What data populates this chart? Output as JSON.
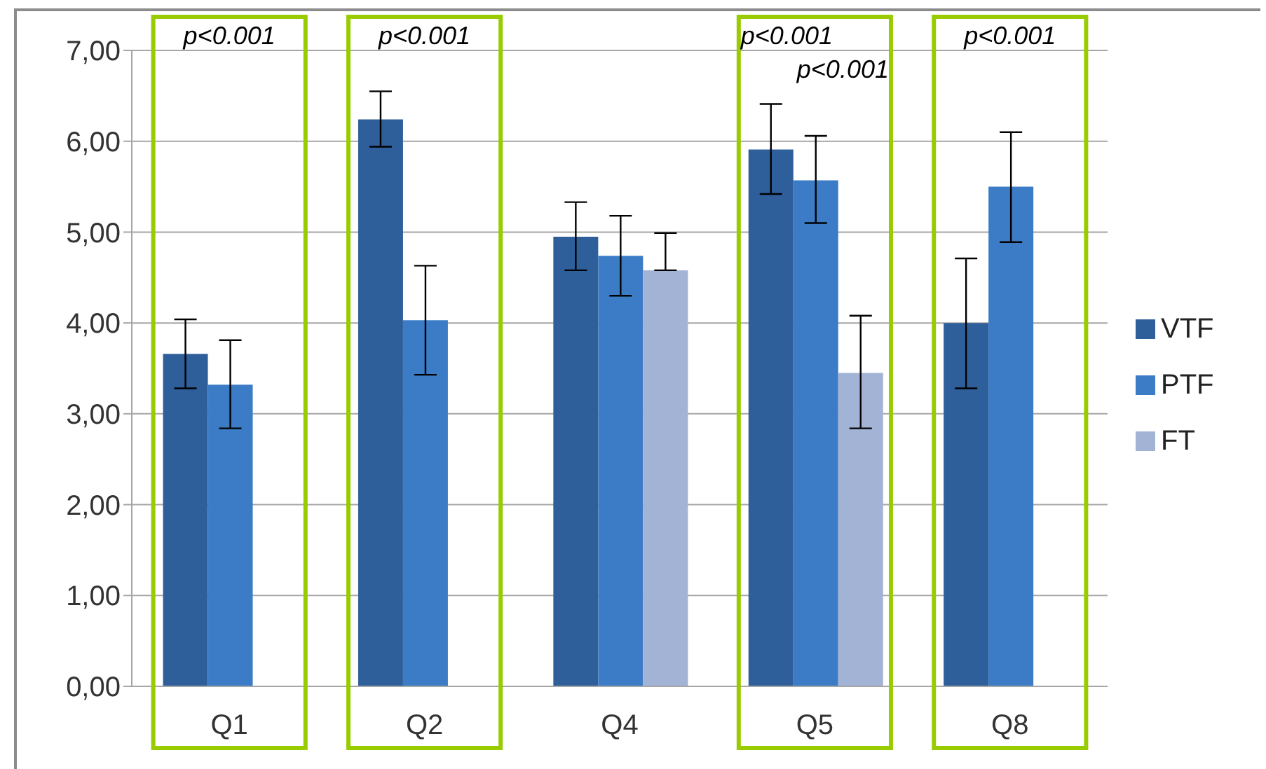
{
  "chart_data": {
    "type": "bar",
    "categories": [
      "Q1",
      "Q2",
      "Q4",
      "Q5",
      "Q8"
    ],
    "series": [
      {
        "name": "VTF",
        "color": "#2f5f9b",
        "values": [
          3.66,
          6.24,
          4.95,
          5.91,
          4.0
        ],
        "errors": [
          [
            3.28,
            4.04
          ],
          [
            5.94,
            6.55
          ],
          [
            4.58,
            5.33
          ],
          [
            5.42,
            6.41
          ],
          [
            3.28,
            4.71
          ]
        ]
      },
      {
        "name": "PTF",
        "color": "#3c7cc6",
        "values": [
          3.32,
          4.03,
          4.74,
          5.57,
          5.5
        ],
        "errors": [
          [
            2.84,
            3.81
          ],
          [
            3.43,
            4.63
          ],
          [
            4.3,
            5.18
          ],
          [
            5.1,
            6.06
          ],
          [
            4.89,
            6.1
          ]
        ]
      },
      {
        "name": "FT",
        "color": "#a2b3d6",
        "values": [
          null,
          null,
          4.58,
          3.45,
          null
        ],
        "errors": [
          null,
          null,
          [
            4.58,
            4.99
          ],
          [
            2.84,
            4.08
          ],
          null
        ]
      }
    ],
    "ylim": [
      0,
      7
    ],
    "yticks": [
      {
        "value": 0,
        "label": "0,00"
      },
      {
        "value": 1,
        "label": "1,00"
      },
      {
        "value": 2,
        "label": "2,00"
      },
      {
        "value": 3,
        "label": "3,00"
      },
      {
        "value": 4,
        "label": "4,00"
      },
      {
        "value": 5,
        "label": "5,00"
      },
      {
        "value": 6,
        "label": "6,00"
      },
      {
        "value": 7,
        "label": "7,00"
      }
    ],
    "grid": "y",
    "legend": "right",
    "annotations": [
      "p<0.001",
      "p<0.001",
      "p<0.001",
      "p<0.001",
      "p<0.001"
    ]
  }
}
